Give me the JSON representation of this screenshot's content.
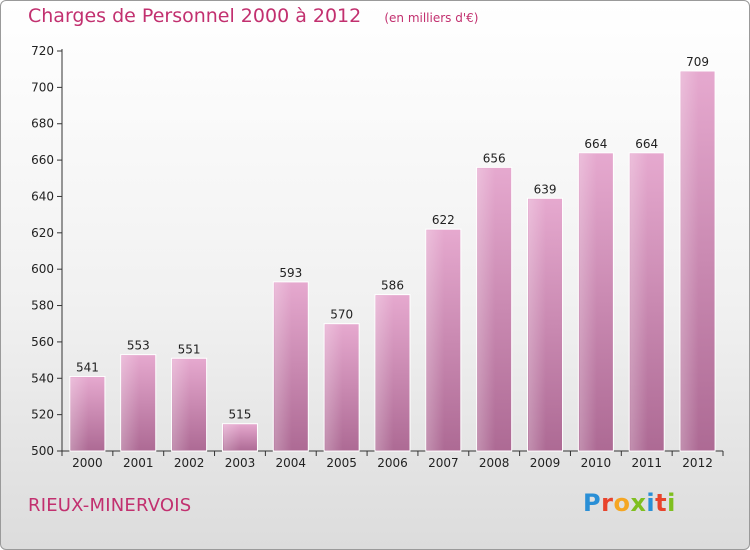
{
  "header": {
    "title": "Charges de Personnel 2000 à 2012",
    "subtitle": "(en milliers d'€)"
  },
  "footer": {
    "commune": "RIEUX-MINERVOIS",
    "brand": "Proxiti"
  },
  "colors": {
    "accent": "#c2306f",
    "bar_top": "#e6a9cf",
    "bar_bottom": "#ad6a94"
  },
  "chart_data": {
    "type": "bar",
    "categories": [
      "2000",
      "2001",
      "2002",
      "2003",
      "2004",
      "2005",
      "2006",
      "2007",
      "2008",
      "2009",
      "2010",
      "2011",
      "2012"
    ],
    "values": [
      541,
      553,
      551,
      515,
      593,
      570,
      586,
      622,
      656,
      639,
      664,
      664,
      709
    ],
    "ylim": [
      500,
      720
    ],
    "yticks": [
      500,
      520,
      540,
      560,
      580,
      600,
      620,
      640,
      660,
      680,
      700,
      720
    ],
    "grid": false,
    "data_labels": true
  }
}
